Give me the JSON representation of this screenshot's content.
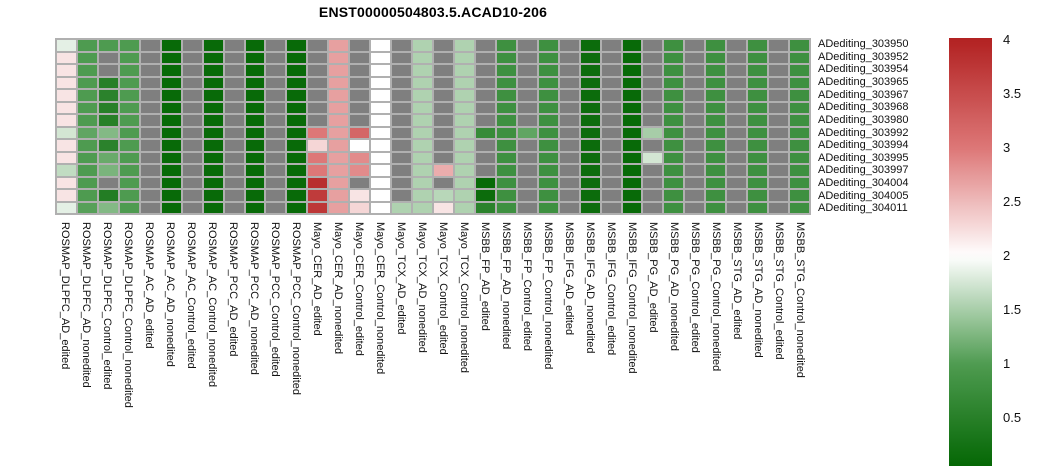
{
  "title": "ENST00000504803.5.ACAD10-206",
  "chart_data": {
    "type": "heatmap",
    "title": "ENST00000504803.5.ACAD10-206",
    "rows": [
      "ADediting_303950",
      "ADediting_303952",
      "ADediting_303954",
      "ADediting_303965",
      "ADediting_303967",
      "ADediting_303968",
      "ADediting_303980",
      "ADediting_303992",
      "ADediting_303994",
      "ADediting_303995",
      "ADediting_303997",
      "ADediting_304004",
      "ADediting_304005",
      "ADediting_304011"
    ],
    "columns": [
      "ROSMAP_DLPFC_AD_edited",
      "ROSMAP_DLPFC_AD_nonedited",
      "ROSMAP_DLPFC_Control_edited",
      "ROSMAP_DLPFC_Control_nonedited",
      "ROSMAP_AC_AD_edited",
      "ROSMAP_AC_AD_nonedited",
      "ROSMAP_AC_Control_edited",
      "ROSMAP_AC_Control_nonedited",
      "ROSMAP_PCC_AD_edited",
      "ROSMAP_PCC_AD_nonedited",
      "ROSMAP_PCC_Control_edited",
      "ROSMAP_PCC_Control_nonedited",
      "Mayo_CER_AD_edited",
      "Mayo_CER_AD_nonedited",
      "Mayo_CER_Control_edited",
      "Mayo_CER_Control_nonedited",
      "Mayo_TCX_AD_edited",
      "Mayo_TCX_AD_nonedited",
      "Mayo_TCX_Control_edited",
      "Mayo_TCX_Control_nonedited",
      "MSBB_FP_AD_edited",
      "MSBB_FP_AD_nonedited",
      "MSBB_FP_Control_edited",
      "MSBB_FP_Control_nonedited",
      "MSBB_IFG_AD_edited",
      "MSBB_IFG_AD_nonedited",
      "MSBB_IFG_Control_edited",
      "MSBB_IFG_Control_nonedited",
      "MSBB_PG_AD_edited",
      "MSBB_PG_AD_nonedited",
      "MSBB_PG_Control_edited",
      "MSBB_PG_Control_nonedited",
      "MSBB_STG_AD_edited",
      "MSBB_STG_AD_nonedited",
      "MSBB_STG_Control_edited",
      "MSBB_STG_Control_nonedited"
    ],
    "values": [
      [
        1.85,
        1.0,
        1.0,
        1.0,
        null,
        0.1,
        null,
        0.1,
        null,
        0.1,
        null,
        0.1,
        null,
        2.7,
        null,
        2.0,
        null,
        1.55,
        null,
        1.55,
        null,
        0.8,
        null,
        0.8,
        null,
        0.15,
        null,
        0.1,
        null,
        0.8,
        null,
        0.8,
        null,
        0.8,
        null,
        0.8
      ],
      [
        2.2,
        1.0,
        null,
        1.0,
        null,
        0.1,
        null,
        0.1,
        null,
        0.1,
        null,
        0.1,
        null,
        2.7,
        null,
        2.0,
        null,
        1.55,
        null,
        1.55,
        null,
        0.8,
        null,
        0.8,
        null,
        0.15,
        null,
        0.1,
        null,
        0.8,
        null,
        0.8,
        null,
        0.8,
        null,
        0.8
      ],
      [
        2.2,
        1.0,
        null,
        1.0,
        null,
        0.1,
        null,
        0.1,
        null,
        0.1,
        null,
        0.1,
        null,
        2.7,
        null,
        2.0,
        null,
        1.55,
        null,
        1.55,
        null,
        0.8,
        null,
        0.8,
        null,
        0.15,
        null,
        0.1,
        null,
        0.8,
        null,
        0.8,
        null,
        0.8,
        null,
        0.8
      ],
      [
        2.2,
        1.0,
        0.5,
        1.0,
        null,
        0.1,
        null,
        0.1,
        null,
        0.1,
        null,
        0.1,
        null,
        2.7,
        null,
        2.0,
        null,
        1.55,
        null,
        1.55,
        null,
        0.8,
        null,
        0.8,
        null,
        0.15,
        null,
        0.1,
        null,
        0.8,
        null,
        0.8,
        null,
        0.8,
        null,
        0.8
      ],
      [
        2.2,
        1.0,
        0.55,
        1.0,
        null,
        0.1,
        null,
        0.1,
        null,
        0.1,
        null,
        0.1,
        null,
        2.7,
        null,
        2.0,
        null,
        1.55,
        null,
        1.55,
        null,
        0.8,
        null,
        0.8,
        null,
        0.15,
        null,
        0.1,
        null,
        0.8,
        null,
        0.8,
        null,
        0.8,
        null,
        0.8
      ],
      [
        2.2,
        1.0,
        0.5,
        1.0,
        null,
        0.1,
        null,
        0.1,
        null,
        0.1,
        null,
        0.1,
        null,
        2.7,
        null,
        2.0,
        null,
        1.55,
        null,
        1.55,
        null,
        0.8,
        null,
        0.8,
        null,
        0.15,
        null,
        0.1,
        null,
        0.8,
        null,
        0.8,
        null,
        0.8,
        null,
        0.8
      ],
      [
        2.2,
        1.0,
        0.5,
        1.0,
        null,
        0.1,
        null,
        0.1,
        null,
        0.1,
        null,
        0.1,
        null,
        2.7,
        null,
        2.0,
        null,
        1.55,
        null,
        1.55,
        null,
        0.8,
        null,
        0.8,
        null,
        0.15,
        null,
        0.1,
        null,
        0.8,
        null,
        0.8,
        null,
        0.8,
        null,
        0.8
      ],
      [
        1.75,
        1.1,
        1.3,
        1.0,
        null,
        0.1,
        null,
        0.1,
        null,
        0.1,
        null,
        0.1,
        3.0,
        2.7,
        3.2,
        2.0,
        null,
        1.55,
        null,
        1.55,
        0.7,
        0.8,
        1.1,
        0.8,
        null,
        0.15,
        null,
        0.1,
        1.5,
        0.8,
        null,
        0.8,
        null,
        0.8,
        null,
        0.8
      ],
      [
        2.2,
        1.0,
        0.55,
        1.0,
        null,
        0.1,
        null,
        0.1,
        null,
        0.1,
        null,
        0.1,
        2.3,
        2.7,
        2.0,
        2.0,
        null,
        1.55,
        null,
        1.55,
        null,
        0.8,
        null,
        0.8,
        null,
        0.15,
        null,
        0.1,
        null,
        0.8,
        null,
        0.8,
        null,
        0.8,
        null,
        0.8
      ],
      [
        2.2,
        1.0,
        1.15,
        1.0,
        null,
        0.1,
        null,
        0.1,
        null,
        0.1,
        null,
        0.1,
        3.0,
        2.7,
        2.85,
        2.0,
        null,
        1.55,
        null,
        1.55,
        null,
        0.8,
        null,
        0.8,
        null,
        0.15,
        null,
        0.1,
        1.75,
        0.8,
        null,
        0.8,
        null,
        0.8,
        null,
        0.8
      ],
      [
        1.65,
        1.0,
        1.25,
        1.0,
        null,
        0.1,
        null,
        0.1,
        null,
        0.1,
        null,
        0.1,
        3.0,
        2.7,
        2.85,
        2.0,
        null,
        1.55,
        2.6,
        1.55,
        null,
        0.8,
        null,
        0.8,
        null,
        0.15,
        null,
        0.1,
        null,
        0.8,
        null,
        0.8,
        null,
        0.8,
        null,
        0.8
      ],
      [
        2.2,
        1.0,
        null,
        1.0,
        null,
        0.1,
        null,
        0.1,
        null,
        0.1,
        null,
        0.1,
        3.85,
        2.7,
        null,
        2.0,
        null,
        1.55,
        null,
        1.55,
        0.1,
        0.8,
        null,
        0.8,
        null,
        0.15,
        null,
        0.1,
        null,
        0.8,
        null,
        0.8,
        null,
        0.8,
        null,
        0.8
      ],
      [
        2.2,
        1.0,
        0.45,
        1.0,
        null,
        0.1,
        null,
        0.1,
        null,
        0.1,
        null,
        0.1,
        3.7,
        2.7,
        2.2,
        2.0,
        null,
        1.55,
        1.6,
        1.55,
        0.15,
        0.8,
        null,
        0.8,
        null,
        0.15,
        null,
        0.1,
        null,
        0.8,
        null,
        0.8,
        null,
        0.8,
        null,
        0.8
      ],
      [
        1.85,
        1.05,
        1.3,
        1.0,
        null,
        0.1,
        null,
        0.1,
        null,
        0.1,
        null,
        0.1,
        3.75,
        2.7,
        2.3,
        2.0,
        1.55,
        1.55,
        2.2,
        1.55,
        0.55,
        0.8,
        null,
        0.8,
        null,
        0.15,
        null,
        0.1,
        null,
        0.8,
        null,
        0.8,
        null,
        0.8,
        null,
        0.8
      ]
    ],
    "na_color": "#7f7f7f",
    "grid_color": "#b0b0b0",
    "colorscale": {
      "anchors": [
        {
          "value": 0,
          "color": "#006400"
        },
        {
          "value": 1,
          "color": "#4e9b50"
        },
        {
          "value": 2,
          "color": "#ffffff"
        },
        {
          "value": 3,
          "color": "#dd7777"
        },
        {
          "value": 4,
          "color": "#b22222"
        }
      ]
    },
    "colorbar": {
      "domain_min": 0.06,
      "domain_max": 4.02,
      "ticks": [
        4,
        3.5,
        3,
        2.5,
        2,
        1.5,
        1,
        0.5
      ],
      "tick_labels": [
        "4",
        "3.5",
        "3",
        "2.5",
        "2",
        "1.5",
        "1",
        "0.5"
      ]
    },
    "legend_position": "right",
    "ylim": [
      0,
      4
    ]
  }
}
